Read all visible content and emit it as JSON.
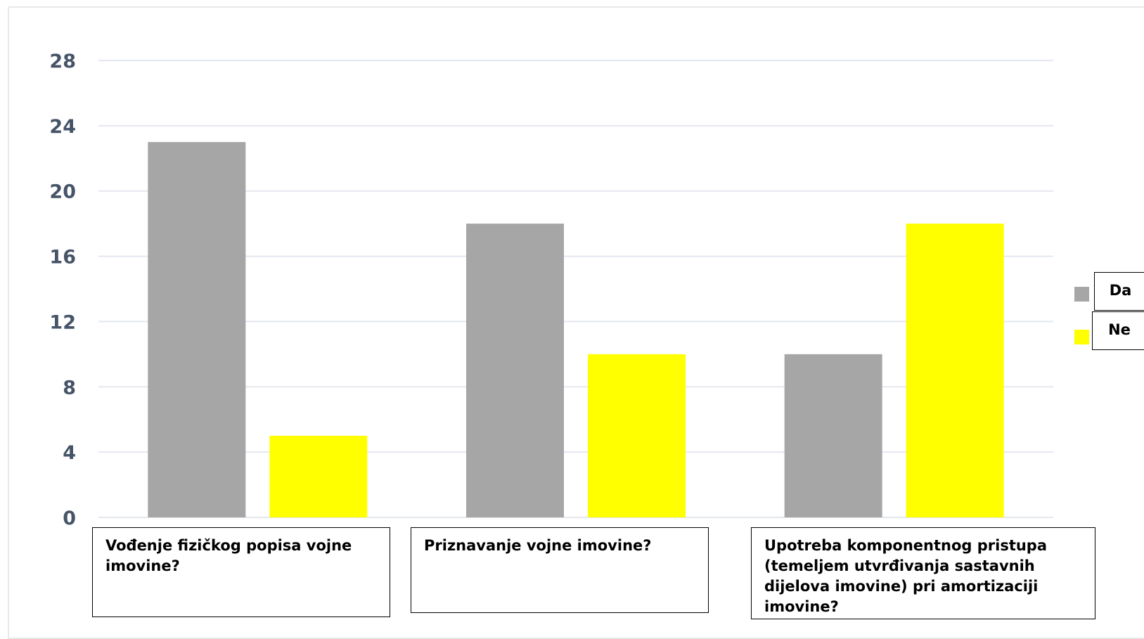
{
  "chart_data": {
    "type": "bar",
    "categories": [
      "Vođenje fizičkog popisa vojne imovine?",
      "Priznavanje vojne imovine?",
      "Upotreba komponentnog pristupa (temeljem utvrđivanja sastavnih dijelova imovine) pri amortizaciji imovine?"
    ],
    "series": [
      {
        "name": "Da",
        "values": [
          23,
          18,
          10
        ],
        "color": "#a6a6a6"
      },
      {
        "name": "Ne",
        "values": [
          5,
          10,
          18
        ],
        "color": "#ffff00"
      }
    ],
    "yticks": [
      0,
      4,
      8,
      12,
      16,
      20,
      24,
      28
    ],
    "ylim": [
      0,
      28
    ],
    "title": "",
    "xlabel": "",
    "ylabel": "",
    "grid": true,
    "legend_position": "right",
    "gridline_color": "#e3e7ee",
    "tick_label_color": "#465468"
  }
}
